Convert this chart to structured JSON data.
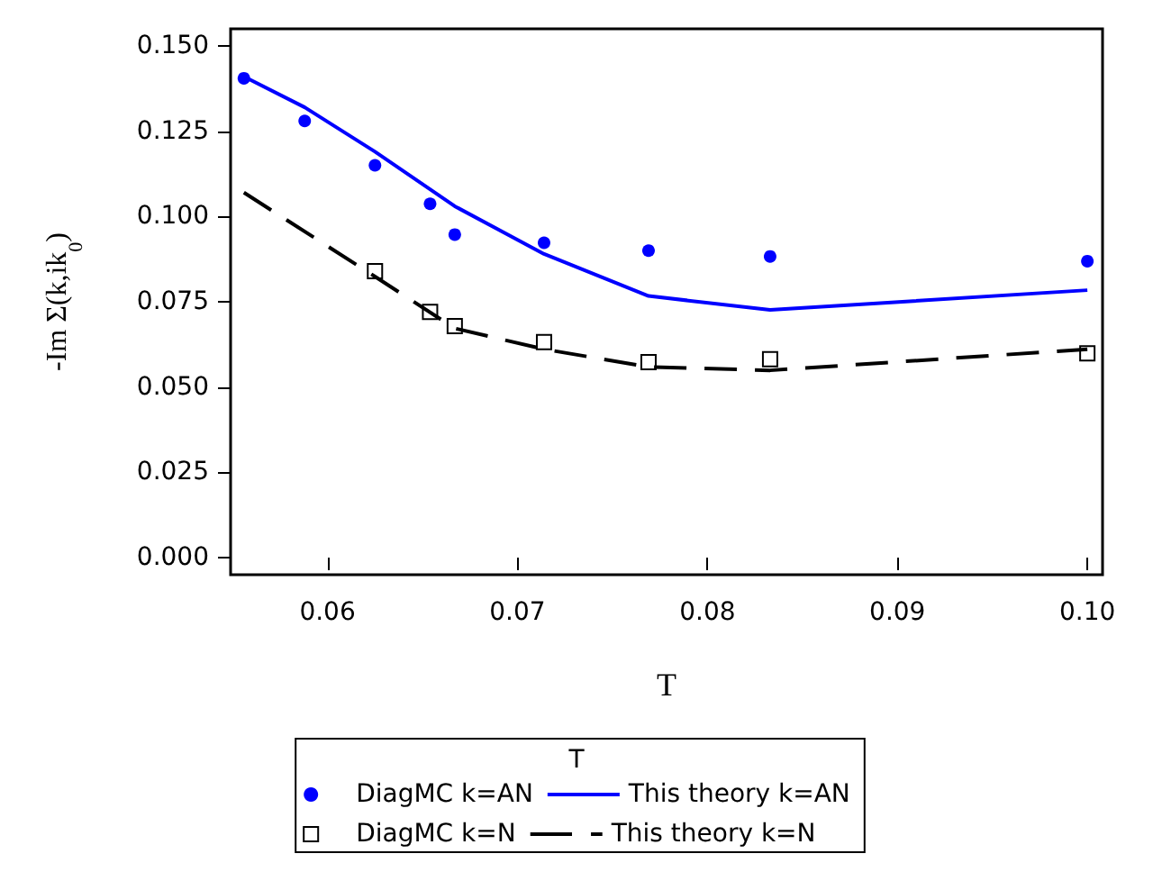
{
  "chart_data": {
    "type": "line",
    "xlabel": "T",
    "ylabel": "-Im Σ(k,ik$_{0}$)",
    "legend_title": "T",
    "legend": "bottom",
    "grid": false,
    "xlim": [
      0.0549,
      0.1008
    ],
    "xticks": [
      {
        "value": 0.06,
        "label": "0.06"
      },
      {
        "value": 0.07,
        "label": "0.07"
      },
      {
        "value": 0.08,
        "label": "0.08"
      },
      {
        "value": 0.09,
        "label": "0.09"
      },
      {
        "value": 0.1,
        "label": "0.10"
      }
    ],
    "ylim": [
      -0.005,
      0.155
    ],
    "yticks": [
      {
        "value": 0,
        "label": "0.000"
      },
      {
        "value": 0.025,
        "label": "0.025"
      },
      {
        "value": 0.05,
        "label": "0.050"
      },
      {
        "value": 0.075,
        "label": "0.075"
      },
      {
        "value": 0.1,
        "label": "0.100"
      },
      {
        "value": 0.125,
        "label": "0.125"
      },
      {
        "value": 0.15,
        "label": "0.150"
      }
    ],
    "series": [
      {
        "name": "DiagMC k=AN",
        "type": "scatter",
        "marker": "circle",
        "color": "#0000ff",
        "x": [
          0.0556,
          0.0588,
          0.0625,
          0.0654,
          0.0667,
          0.0714,
          0.0769,
          0.0833,
          0.1
        ],
        "values": [
          0.1405,
          0.128,
          0.115,
          0.1037,
          0.0947,
          0.0923,
          0.09,
          0.0883,
          0.0869
        ]
      },
      {
        "name": "This theory k=AN",
        "marker": "none",
        "line_style": "solid",
        "color": "#0000ff",
        "x": [
          0.0556,
          0.0588,
          0.0625,
          0.0667,
          0.0714,
          0.0769,
          0.0833,
          0.1
        ],
        "values": [
          0.141,
          0.132,
          0.119,
          0.103,
          0.089,
          0.0767,
          0.0726,
          0.0784
        ]
      },
      {
        "name": "DiagMC k=N",
        "type": "scatter",
        "marker": "square",
        "color": "#000000",
        "x": [
          0.0625,
          0.0654,
          0.0667,
          0.0714,
          0.0769,
          0.0833,
          0.1
        ],
        "values": [
          0.084,
          0.072,
          0.0679,
          0.0632,
          0.0573,
          0.0582,
          0.0599
        ]
      },
      {
        "name": "This theory k=N",
        "marker": "none",
        "line_style": "dashed",
        "color": "#000000",
        "x": [
          0.0556,
          0.0625,
          0.0667,
          0.0714,
          0.0769,
          0.0833,
          0.1
        ],
        "values": [
          0.107,
          0.0824,
          0.0672,
          0.0611,
          0.0559,
          0.0549,
          0.0611
        ]
      }
    ]
  }
}
